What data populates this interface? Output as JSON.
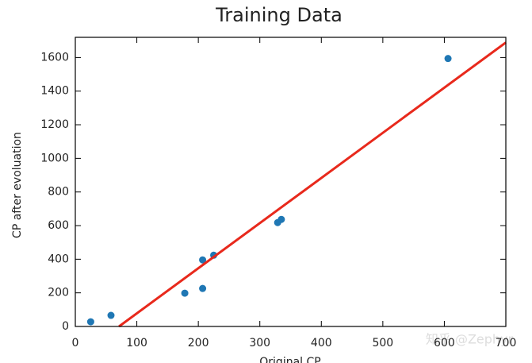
{
  "chart_data": {
    "type": "scatter",
    "title": "Training Data",
    "xlabel": "Original CP",
    "ylabel": "CP after evoluation",
    "annotation": "知乎 @Zephyr",
    "series": [
      {
        "type": "scatter",
        "color": "#1f77b4",
        "x": [
          25,
          58,
          178,
          207,
          207,
          225,
          329,
          335,
          606
        ],
        "values": [
          28,
          66,
          198,
          396,
          226,
          424,
          618,
          637,
          1594
        ]
      },
      {
        "type": "line",
        "color": "#e8291c",
        "x": [
          71,
          700
        ],
        "values": [
          0,
          1689
        ]
      }
    ],
    "xlim": [
      0,
      700
    ],
    "xticks": [
      0,
      100,
      200,
      300,
      400,
      500,
      600,
      700
    ],
    "ylim": [
      0,
      1720
    ],
    "yticks": [
      0,
      200,
      400,
      600,
      800,
      1000,
      1200,
      1400,
      1600
    ],
    "grid": false
  }
}
